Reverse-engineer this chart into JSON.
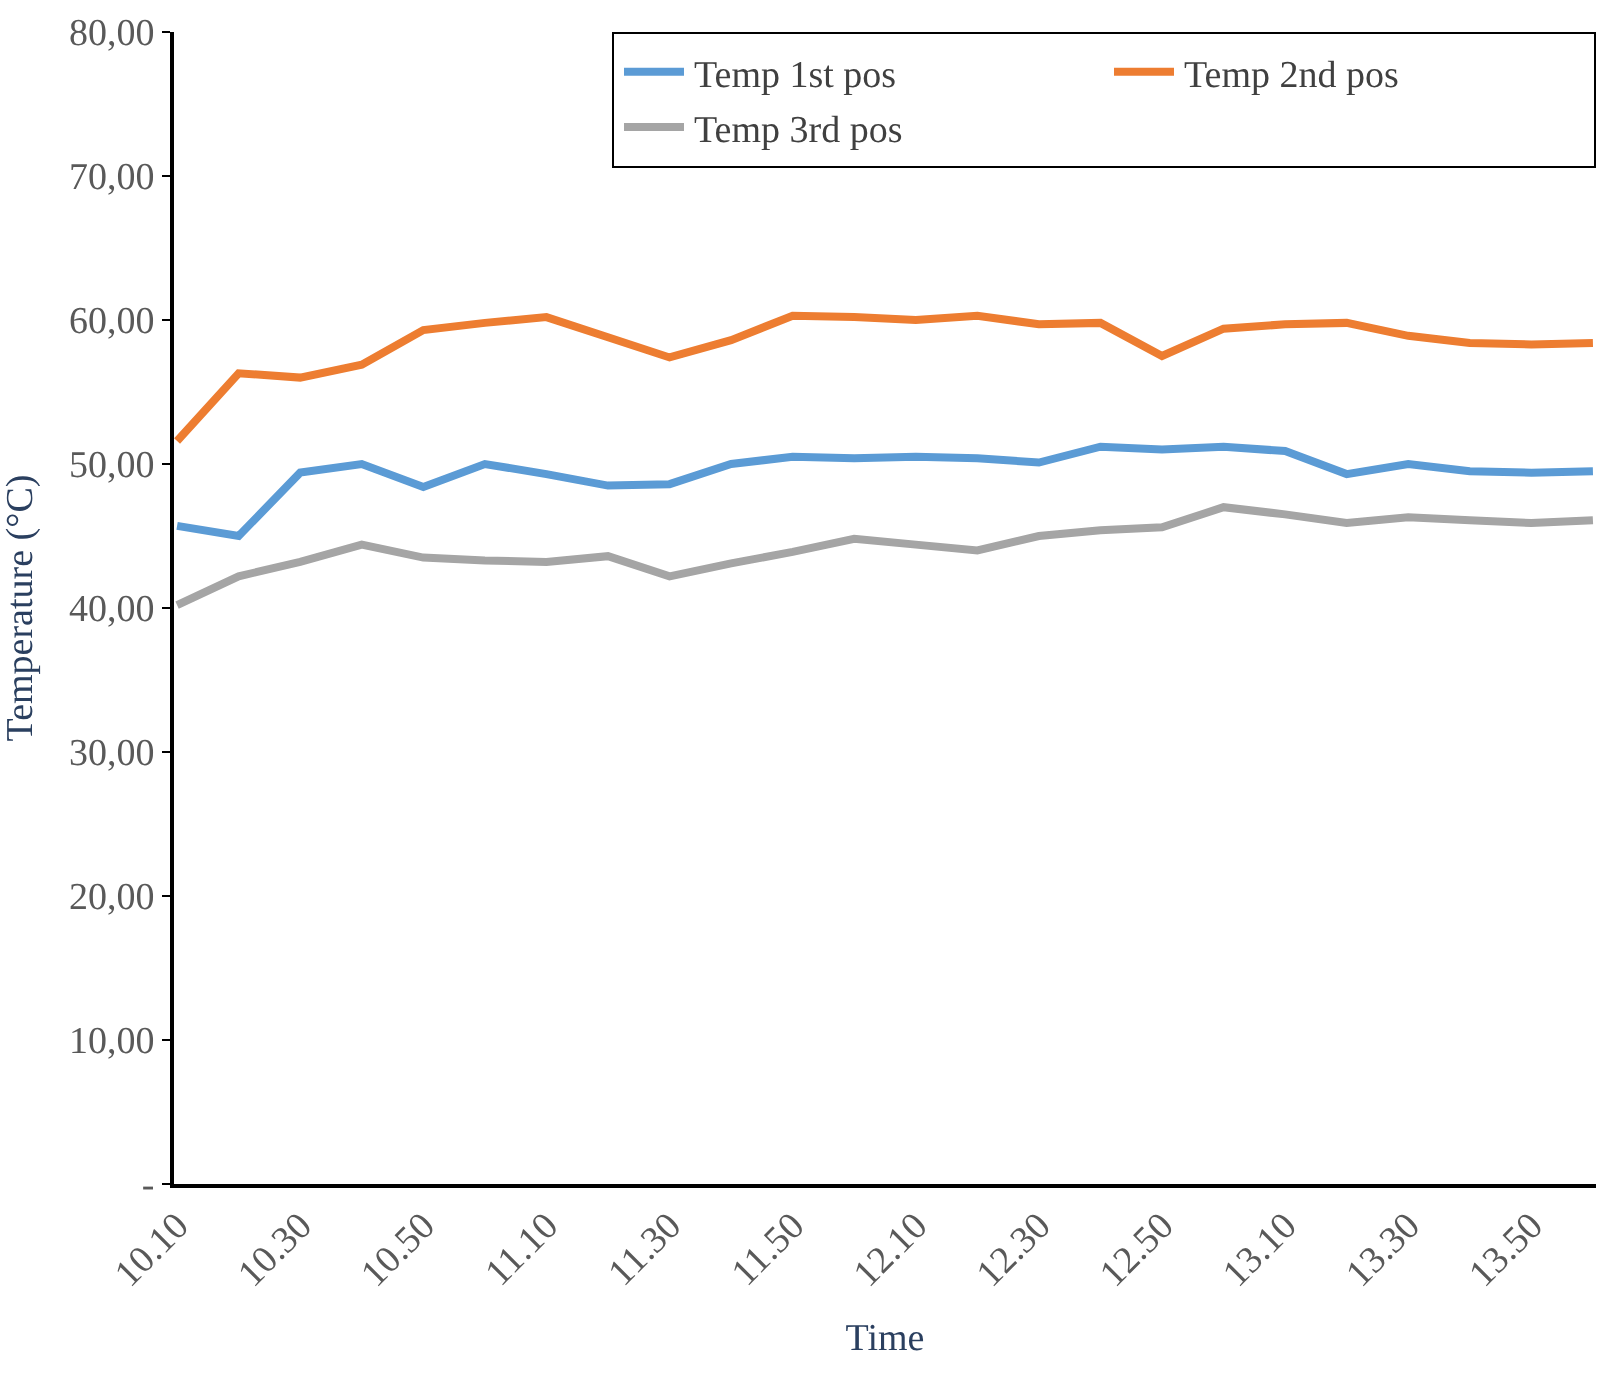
{
  "chart_data": {
    "type": "line",
    "xlabel": "Time",
    "ylabel": "Temperature (°C)",
    "categories": [
      "10.10",
      null,
      "10.30",
      null,
      "10.50",
      null,
      "11.10",
      null,
      "11.30",
      null,
      "11.50",
      null,
      "12.10",
      null,
      "12.30",
      null,
      "12.50",
      null,
      "13.10",
      null,
      "13.30",
      null,
      "13.50",
      null
    ],
    "series": [
      {
        "name": "Temp 1st pos",
        "color": "#5b9bd5",
        "values": [
          45.7,
          45.0,
          49.4,
          50.0,
          48.4,
          50.0,
          49.3,
          48.5,
          48.6,
          50.0,
          50.5,
          50.4,
          50.5,
          50.4,
          50.1,
          51.2,
          51.0,
          51.2,
          50.9,
          49.3,
          50.0,
          49.5,
          49.4,
          49.5
        ]
      },
      {
        "name": "Temp 2nd pos",
        "color": "#ed7d31",
        "values": [
          51.6,
          56.3,
          56.0,
          56.9,
          59.3,
          59.8,
          60.2,
          58.8,
          57.4,
          58.6,
          60.3,
          60.2,
          60.0,
          60.3,
          59.7,
          59.8,
          57.5,
          59.4,
          59.7,
          59.8,
          58.9,
          58.4,
          58.3,
          58.4
        ]
      },
      {
        "name": "Temp 3rd pos",
        "color": "#a5a5a5",
        "values": [
          40.2,
          42.2,
          43.2,
          44.4,
          43.5,
          43.3,
          43.2,
          43.6,
          42.2,
          43.1,
          43.9,
          44.8,
          44.4,
          44.0,
          45.0,
          45.4,
          45.6,
          47.0,
          46.5,
          45.9,
          46.3,
          46.1,
          45.9,
          46.1
        ]
      }
    ],
    "ylim": [
      0,
      80
    ],
    "yticks": [
      {
        "value": 0,
        "label": "-"
      },
      {
        "value": 10,
        "label": "10,00"
      },
      {
        "value": 20,
        "label": "20,00"
      },
      {
        "value": 30,
        "label": "30,00"
      },
      {
        "value": 40,
        "label": "40,00"
      },
      {
        "value": 50,
        "label": "50,00"
      },
      {
        "value": 60,
        "label": "60,00"
      },
      {
        "value": 70,
        "label": "70,00"
      },
      {
        "value": 80,
        "label": "80,00"
      }
    ],
    "grid": false,
    "legend": "top right",
    "marker": "none",
    "line_style": "solid"
  }
}
